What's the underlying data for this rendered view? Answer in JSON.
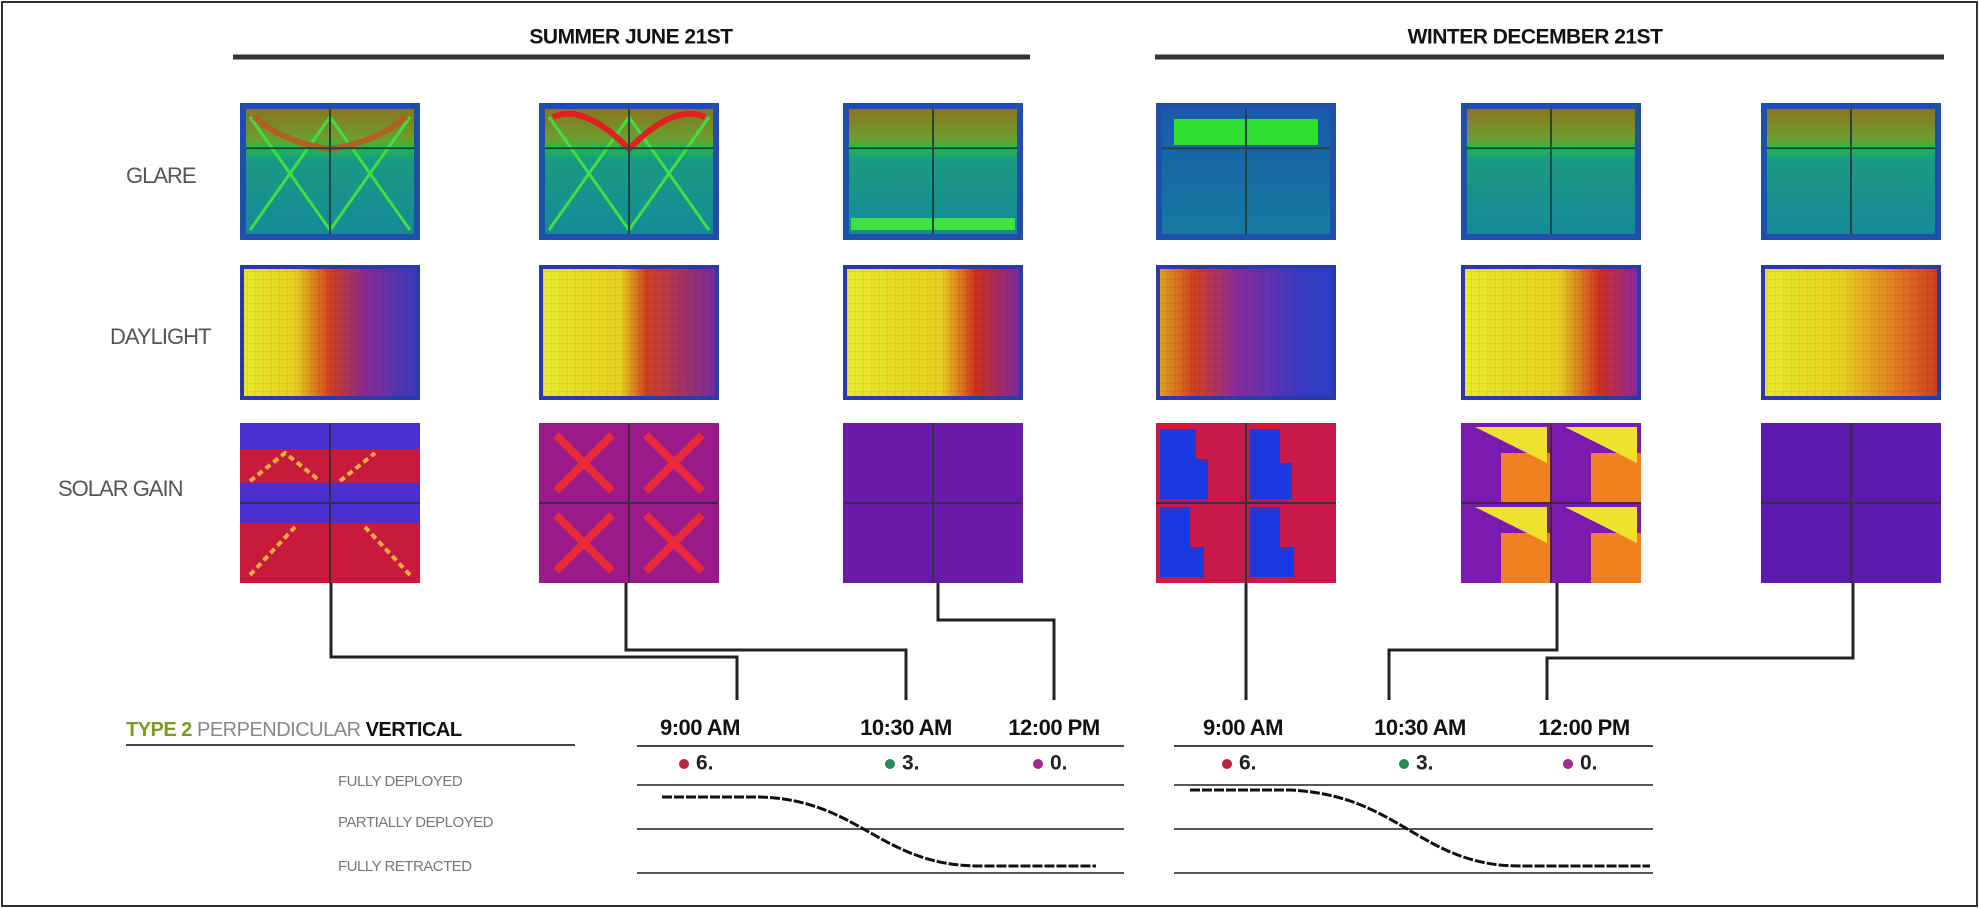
{
  "sections": [
    {
      "title": "SUMMER JUNE 21ST",
      "times": [
        {
          "time": "9:00 AM",
          "value": "6."
        },
        {
          "time": "10:30 AM",
          "value": "3."
        },
        {
          "time": "12:00 PM",
          "value": "0."
        }
      ]
    },
    {
      "title": "WINTER DECEMBER 21ST",
      "times": [
        {
          "time": "9:00 AM",
          "value": "6."
        },
        {
          "time": "10:30 AM",
          "value": "3."
        },
        {
          "time": "12:00 PM",
          "value": "0."
        }
      ]
    }
  ],
  "rows": [
    "GLARE",
    "DAYLIGHT",
    "SOLAR GAIN"
  ],
  "legend": {
    "type": "TYPE 2",
    "orientation": "PERPENDICULAR",
    "direction": "VERTICAL"
  },
  "positions": [
    "FULLY DEPLOYED",
    "PARTIALLY DEPLOYED",
    "FULLY RETRACTED"
  ]
}
